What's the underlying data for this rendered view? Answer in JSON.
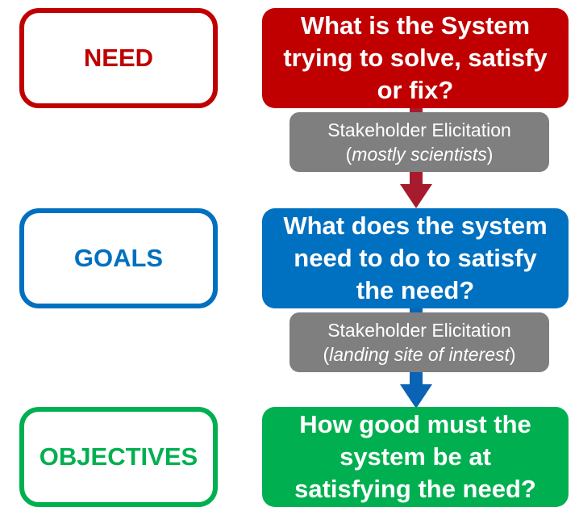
{
  "colors": {
    "need": "#c00000",
    "goals": "#0070c0",
    "objectives": "#00b050",
    "elicitation": "#7f7f7f",
    "connector_red": "#a61c2e",
    "connector_blue": "#0b63b5"
  },
  "rows": [
    {
      "label": "NEED",
      "question": [
        "What is the System",
        "trying to solve, satisfy",
        "or fix?"
      ]
    },
    {
      "label": "GOALS",
      "question": [
        "What does the system",
        "need to do to satisfy",
        "the need?"
      ]
    },
    {
      "label": "OBJECTIVES",
      "question": [
        "How good must the",
        "system be at",
        "satisfying the need?"
      ]
    }
  ],
  "elicitations": [
    {
      "title": "Stakeholder Elicitation",
      "open": "(",
      "detail": "mostly scientists",
      "close": ")"
    },
    {
      "title": "Stakeholder Elicitation",
      "open": "(",
      "detail": "landing site of interest",
      "close": ")"
    }
  ]
}
